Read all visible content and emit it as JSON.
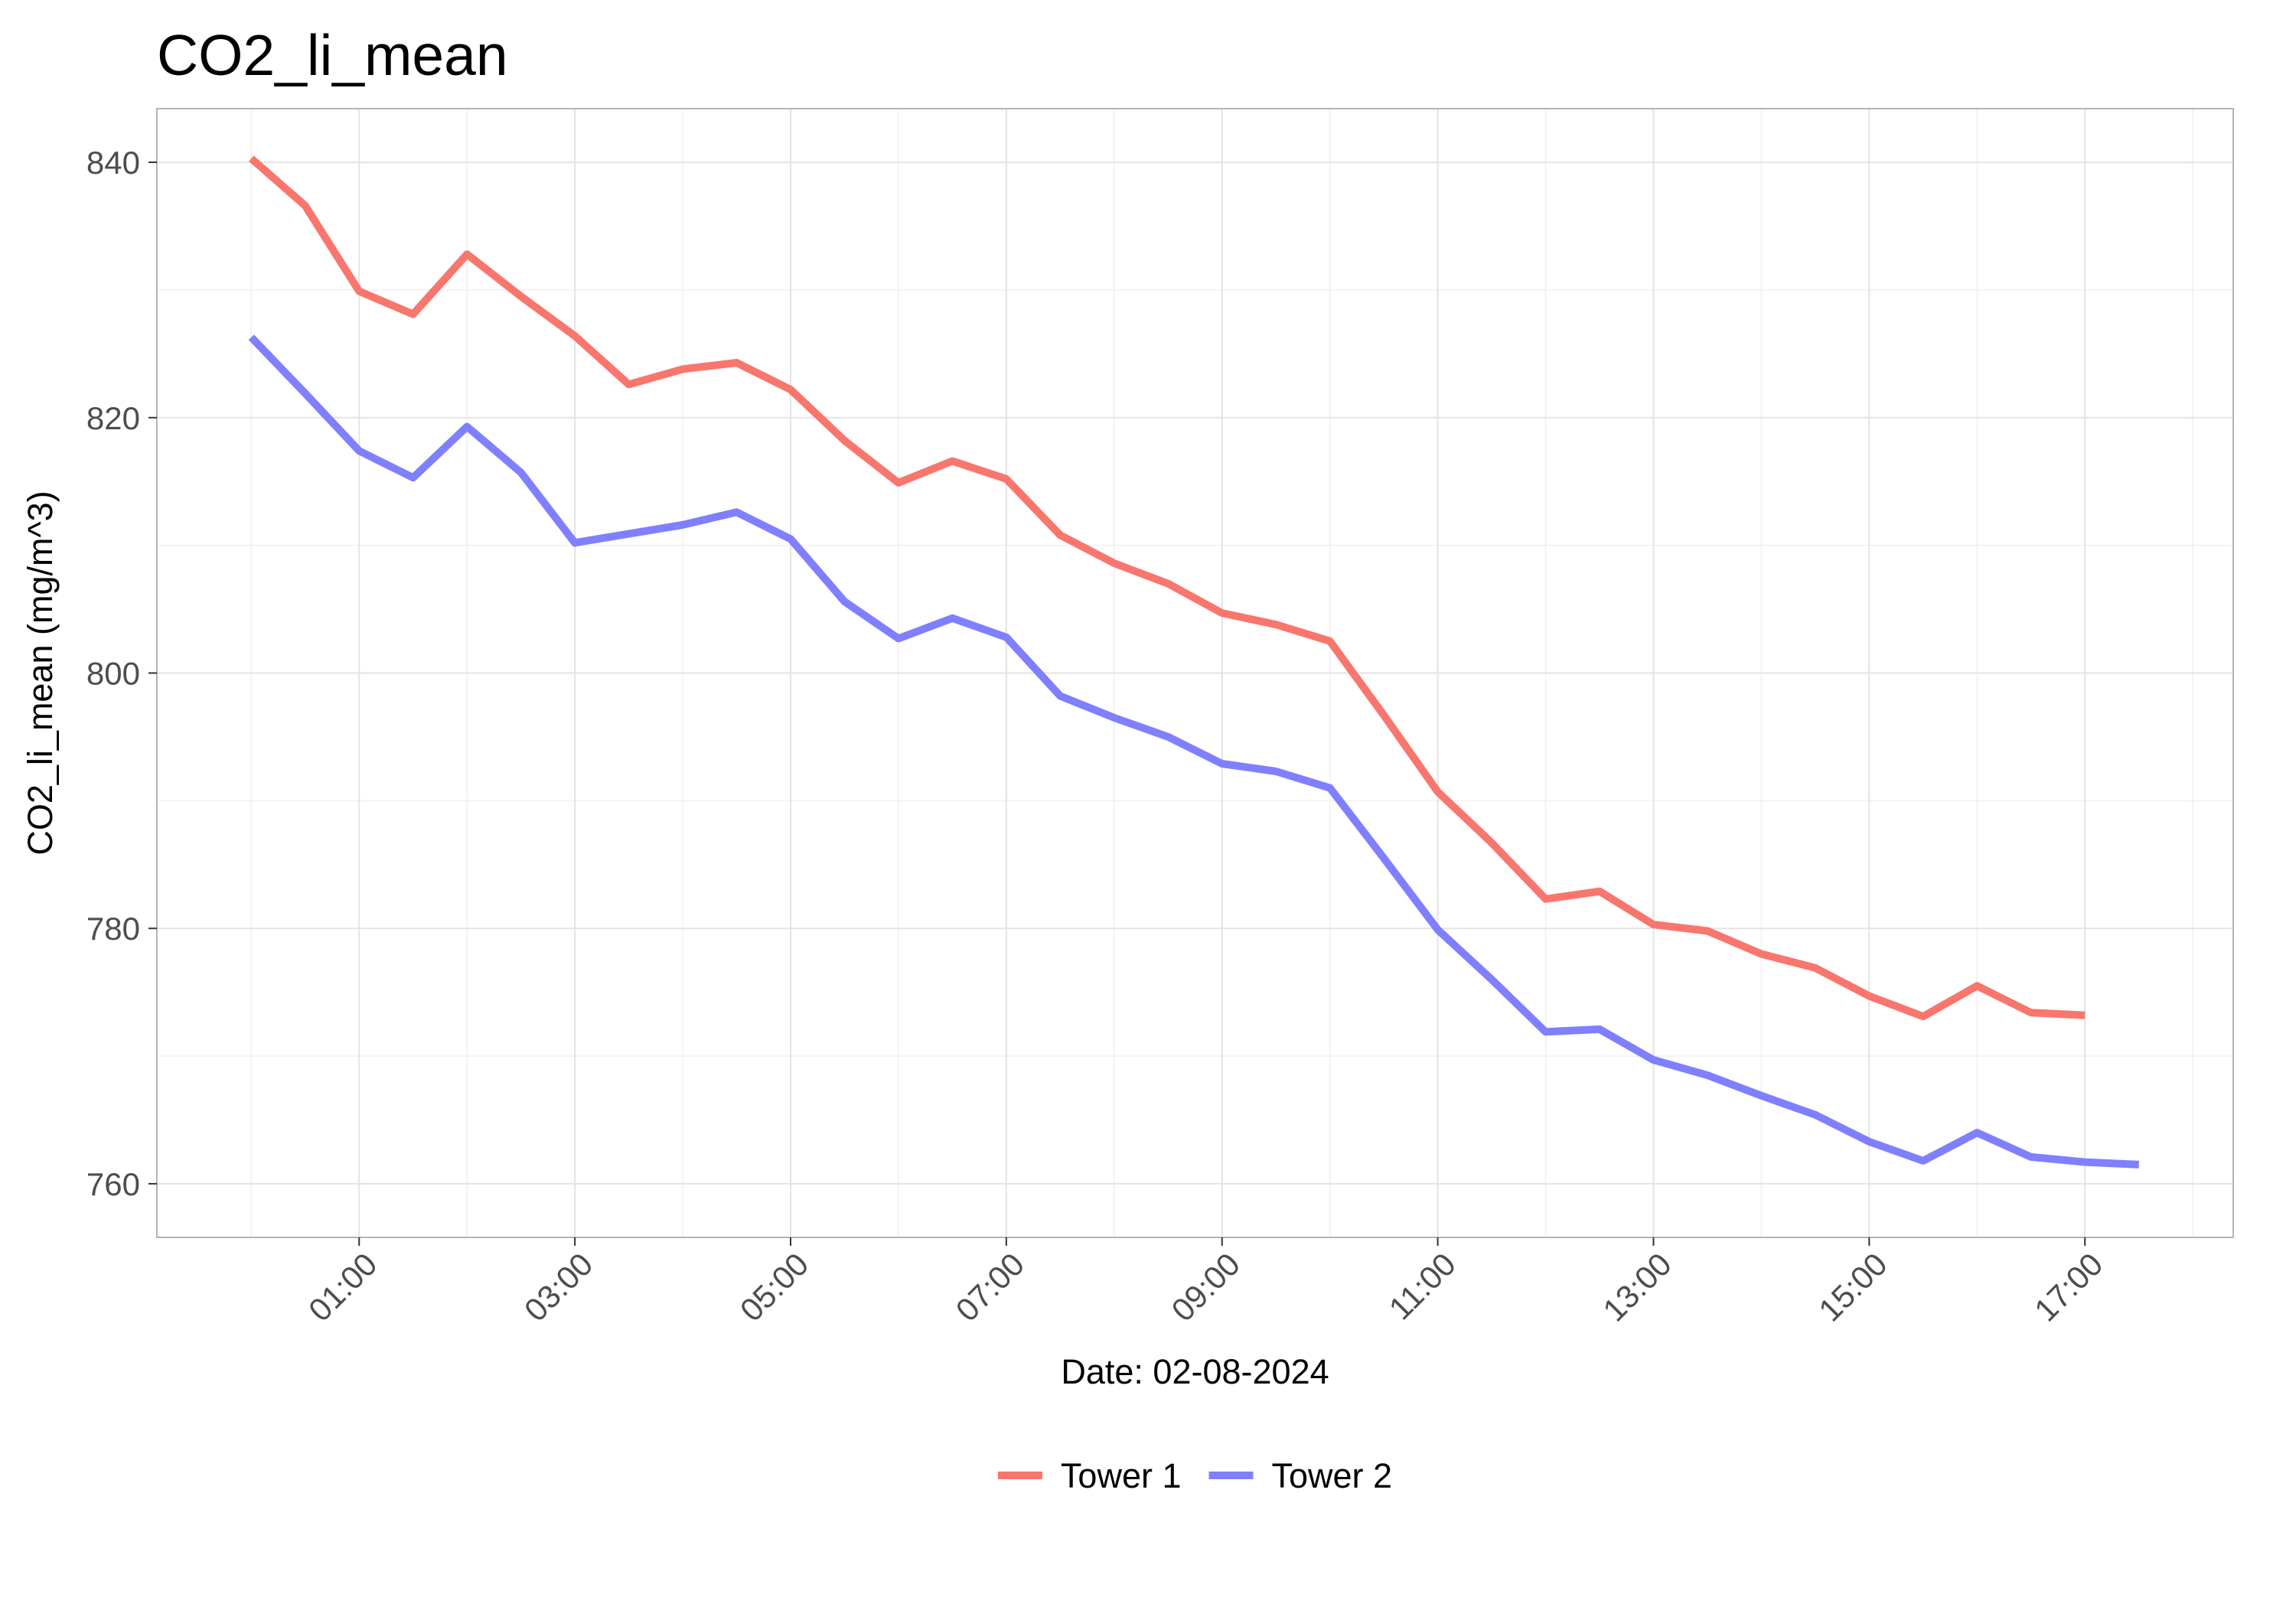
{
  "chart_data": {
    "type": "line",
    "title": "CO2_li_mean",
    "xlabel": "Date: 02-08-2024",
    "ylabel": "CO2_li_mean (mg/m^3)",
    "x_unit": "hours",
    "xlim": [
      -0.875,
      18.375
    ],
    "ylim": [
      755.8,
      844.2
    ],
    "y_ticks": [
      760,
      780,
      800,
      820,
      840
    ],
    "x_ticks": [
      {
        "value": 1,
        "label": "01:00"
      },
      {
        "value": 3,
        "label": "03:00"
      },
      {
        "value": 5,
        "label": "05:00"
      },
      {
        "value": 7,
        "label": "07:00"
      },
      {
        "value": 9,
        "label": "09:00"
      },
      {
        "value": 11,
        "label": "11:00"
      },
      {
        "value": 13,
        "label": "13:00"
      },
      {
        "value": 15,
        "label": "15:00"
      },
      {
        "value": 17,
        "label": "17:00"
      }
    ],
    "grid": true,
    "legend_position": "bottom",
    "series": [
      {
        "name": "Tower 1",
        "color": "#F8766D",
        "x": [
          0,
          0.5,
          1,
          1.5,
          2,
          2.5,
          3,
          3.5,
          4,
          4.5,
          5,
          5.5,
          6,
          6.5,
          7,
          7.5,
          8,
          8.5,
          9,
          9.5,
          10,
          10.5,
          11,
          11.5,
          12,
          12.5,
          13,
          13.5,
          14,
          14.5,
          15,
          15.5,
          16,
          16.5,
          17
        ],
        "values": [
          840.3,
          836.6,
          829.9,
          828.1,
          832.8,
          829.5,
          826.4,
          822.6,
          823.8,
          824.3,
          822.2,
          818.2,
          814.9,
          816.6,
          815.2,
          810.8,
          808.6,
          807.0,
          804.7,
          803.8,
          802.5,
          796.7,
          790.7,
          786.7,
          782.3,
          782.9,
          780.3,
          779.8,
          778.0,
          776.9,
          774.7,
          773.1,
          775.5,
          773.4,
          773.2
        ]
      },
      {
        "name": "Tower 2",
        "color": "#7F7FFF",
        "x": [
          0,
          0.5,
          1,
          1.5,
          2,
          2.5,
          3,
          3.5,
          4,
          4.5,
          5,
          5.5,
          6,
          6.5,
          7,
          7.5,
          8,
          8.5,
          9,
          9.5,
          10,
          10.5,
          11,
          11.5,
          12,
          12.5,
          13,
          13.5,
          14,
          14.5,
          15,
          15.5,
          16,
          16.5,
          17,
          17.5
        ],
        "values": [
          826.3,
          821.9,
          817.4,
          815.3,
          819.3,
          815.7,
          810.2,
          810.9,
          811.6,
          812.6,
          810.5,
          805.6,
          802.7,
          804.3,
          802.8,
          798.2,
          796.5,
          795.0,
          792.9,
          792.3,
          791.0,
          785.5,
          779.9,
          776.0,
          771.9,
          772.1,
          769.7,
          768.5,
          766.9,
          765.4,
          763.3,
          761.8,
          764.0,
          762.1,
          761.7,
          761.5
        ]
      }
    ]
  }
}
